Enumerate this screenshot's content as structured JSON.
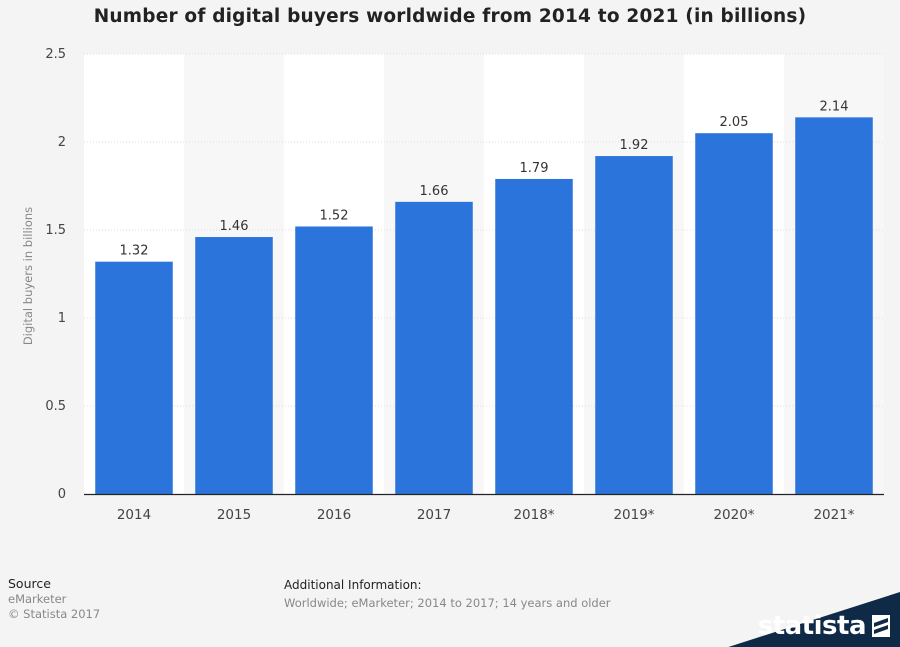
{
  "chart_data": {
    "type": "bar",
    "title": "Number of digital buyers worldwide from 2014 to 2021 (in billions)",
    "xlabel": "",
    "ylabel": "Digital buyers in billions",
    "categories": [
      "2014",
      "2015",
      "2016",
      "2017",
      "2018*",
      "2019*",
      "2020*",
      "2021*"
    ],
    "values": [
      1.32,
      1.46,
      1.52,
      1.66,
      1.79,
      1.92,
      2.05,
      2.14
    ],
    "value_labels": [
      "1.32",
      "1.46",
      "1.52",
      "1.66",
      "1.79",
      "1.92",
      "2.05",
      "2.14"
    ],
    "ylim": [
      0,
      2.5
    ],
    "yticks": [
      0,
      0.5,
      1,
      1.5,
      2,
      2.5
    ],
    "ytick_labels": [
      "0",
      "0.5",
      "1",
      "1.5",
      "2",
      "2.5"
    ],
    "grid": true,
    "bar_color": "#2a74db"
  },
  "footer": {
    "source_label": "Source",
    "source_value": "eMarketer",
    "copyright": "© Statista 2017",
    "additional_label": "Additional Information:",
    "additional_text": "Worldwide; eMarketer; 2014 to 2017; 14 years and older",
    "brand": "statista"
  }
}
